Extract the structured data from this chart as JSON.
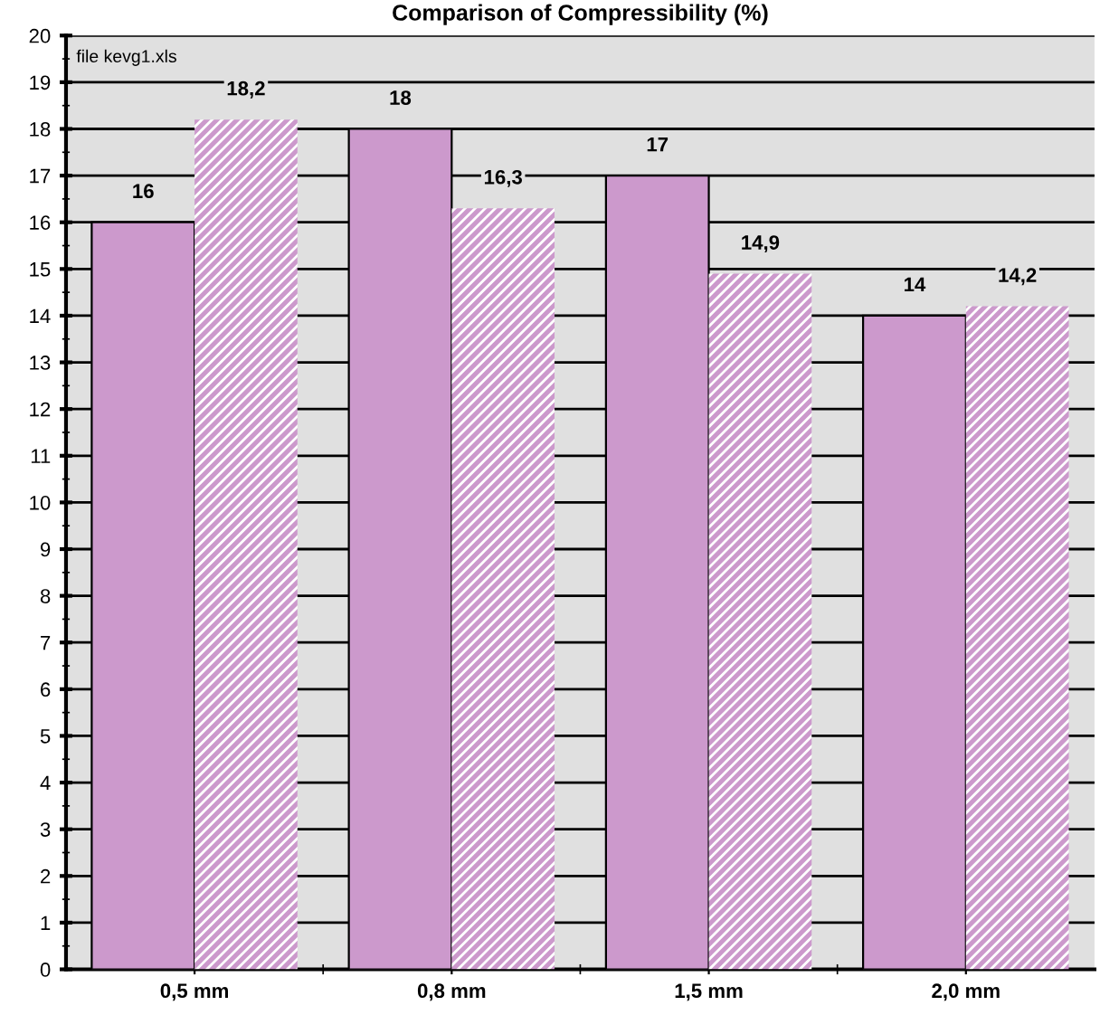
{
  "chart_data": {
    "type": "bar",
    "title": "Comparison of Compressibility (%)",
    "categories": [
      "0,5 mm",
      "0,8 mm",
      "1,5 mm",
      "2,0 mm"
    ],
    "series": [
      {
        "color": "#cc99cc",
        "values": [
          16,
          18,
          17,
          14
        ],
        "value_labels": [
          "16",
          "18",
          "17",
          "14"
        ]
      },
      {
        "color": "#cc99cc",
        "values": [
          18.2,
          16.3,
          14.9,
          14.2
        ],
        "value_labels": [
          "18,2",
          "16,3",
          "14,9",
          "14,2"
        ]
      }
    ],
    "ylim": [
      0,
      20
    ],
    "yticks": [
      0,
      1,
      2,
      3,
      4,
      5,
      6,
      7,
      8,
      9,
      10,
      11,
      12,
      13,
      14,
      15,
      16,
      17,
      18,
      19,
      20
    ],
    "grid": "y",
    "legend": false,
    "annotations": [
      "file kevg1.xls"
    ]
  }
}
